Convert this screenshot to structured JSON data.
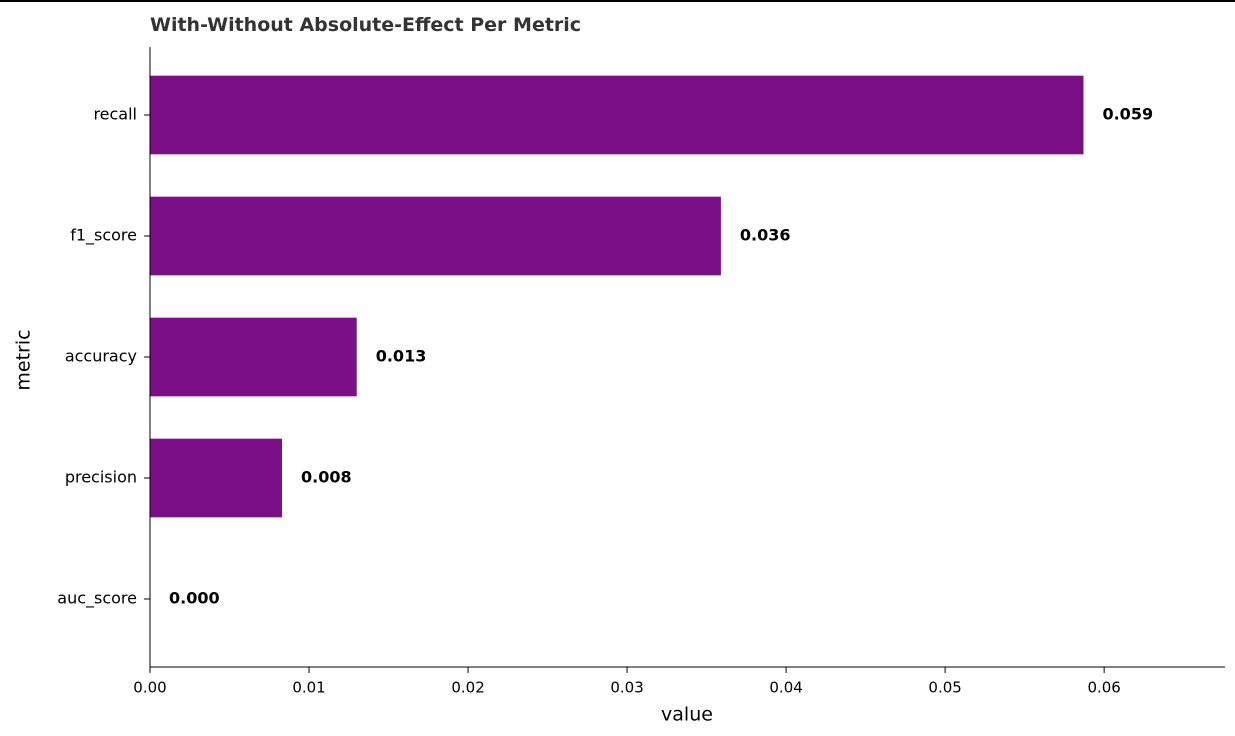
{
  "chart_data": {
    "type": "barh",
    "title": "With-Without Absolute-Effect Per Metric",
    "x_label": "value",
    "y_label": "metric",
    "categories": [
      "recall",
      "f1_score",
      "accuracy",
      "precision",
      "auc_score"
    ],
    "values": [
      0.0587,
      0.0359,
      0.013,
      0.0083,
      0
    ],
    "value_labels": [
      "0.059",
      "0.036",
      "0.013",
      "0.008",
      "0.000"
    ],
    "color": "#7b0f87",
    "xlim": [
      0,
      0.0676
    ],
    "xticks": [
      {
        "value": 0,
        "label": "0.00"
      },
      0.01,
      0.02,
      0.03,
      0.04,
      0.05,
      0.06
    ],
    "grid": false
  }
}
